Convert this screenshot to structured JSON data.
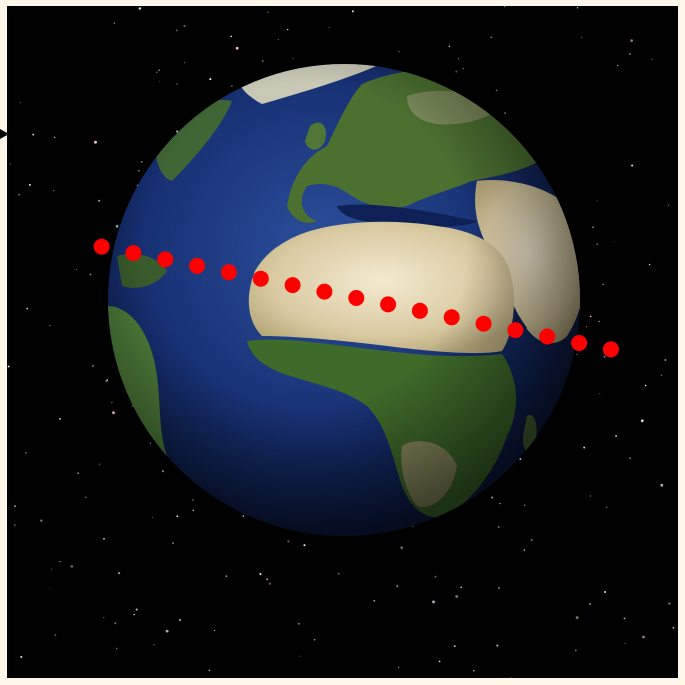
{
  "colors": {
    "frame": "#fff8ea",
    "space": "#000000",
    "ocean_deep": "#0c1a4a",
    "ocean_light": "#1f3f8a",
    "desert": "#d9cfa6",
    "vegetation": "#3f6b2a",
    "track_point": "#ff0000",
    "star": "#ffffff"
  },
  "icons": {
    "earth": "earth-globe",
    "arrow": "arrow-right-icon"
  },
  "track": {
    "count": 17,
    "start_fraction": [
      0.141,
      0.358
    ],
    "end_fraction": [
      0.9,
      0.511
    ]
  }
}
